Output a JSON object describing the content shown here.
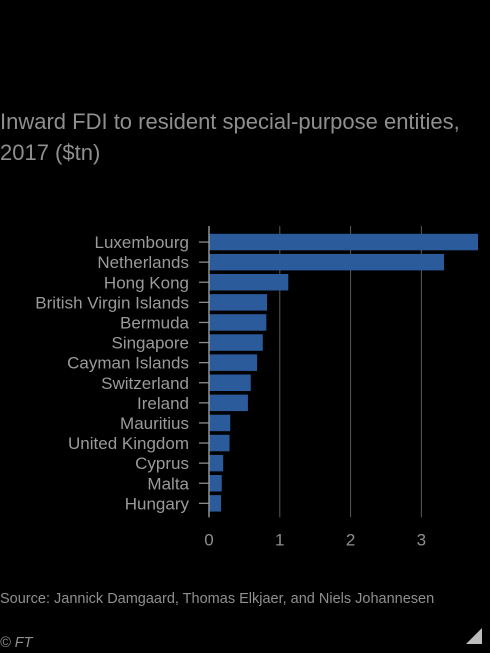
{
  "colors": {
    "bar": "#2b5b9b",
    "background": "#000000",
    "text": "#9a9a9a",
    "grid": "#5a5a5a"
  },
  "chart_data": {
    "type": "bar",
    "orientation": "horizontal",
    "title": "Inward FDI to resident special-purpose entities, 2017 ($tn)",
    "categories": [
      "Luxembourg",
      "Netherlands",
      "Hong Kong",
      "British Virgin Islands",
      "Bermuda",
      "Singapore",
      "Cayman Islands",
      "Switzerland",
      "Ireland",
      "Mauritius",
      "United Kingdom",
      "Cyprus",
      "Malta",
      "Hungary"
    ],
    "values": [
      3.8,
      3.32,
      1.12,
      0.82,
      0.81,
      0.76,
      0.68,
      0.59,
      0.55,
      0.3,
      0.29,
      0.2,
      0.18,
      0.17
    ],
    "xlim": [
      0,
      3.8
    ],
    "xticks": [
      "0",
      "1",
      "2",
      "3"
    ],
    "grid": true
  },
  "source": "Source: Jannick Damgaard, Thomas Elkjaer, and Niels Johannesen",
  "credit": "© FT"
}
